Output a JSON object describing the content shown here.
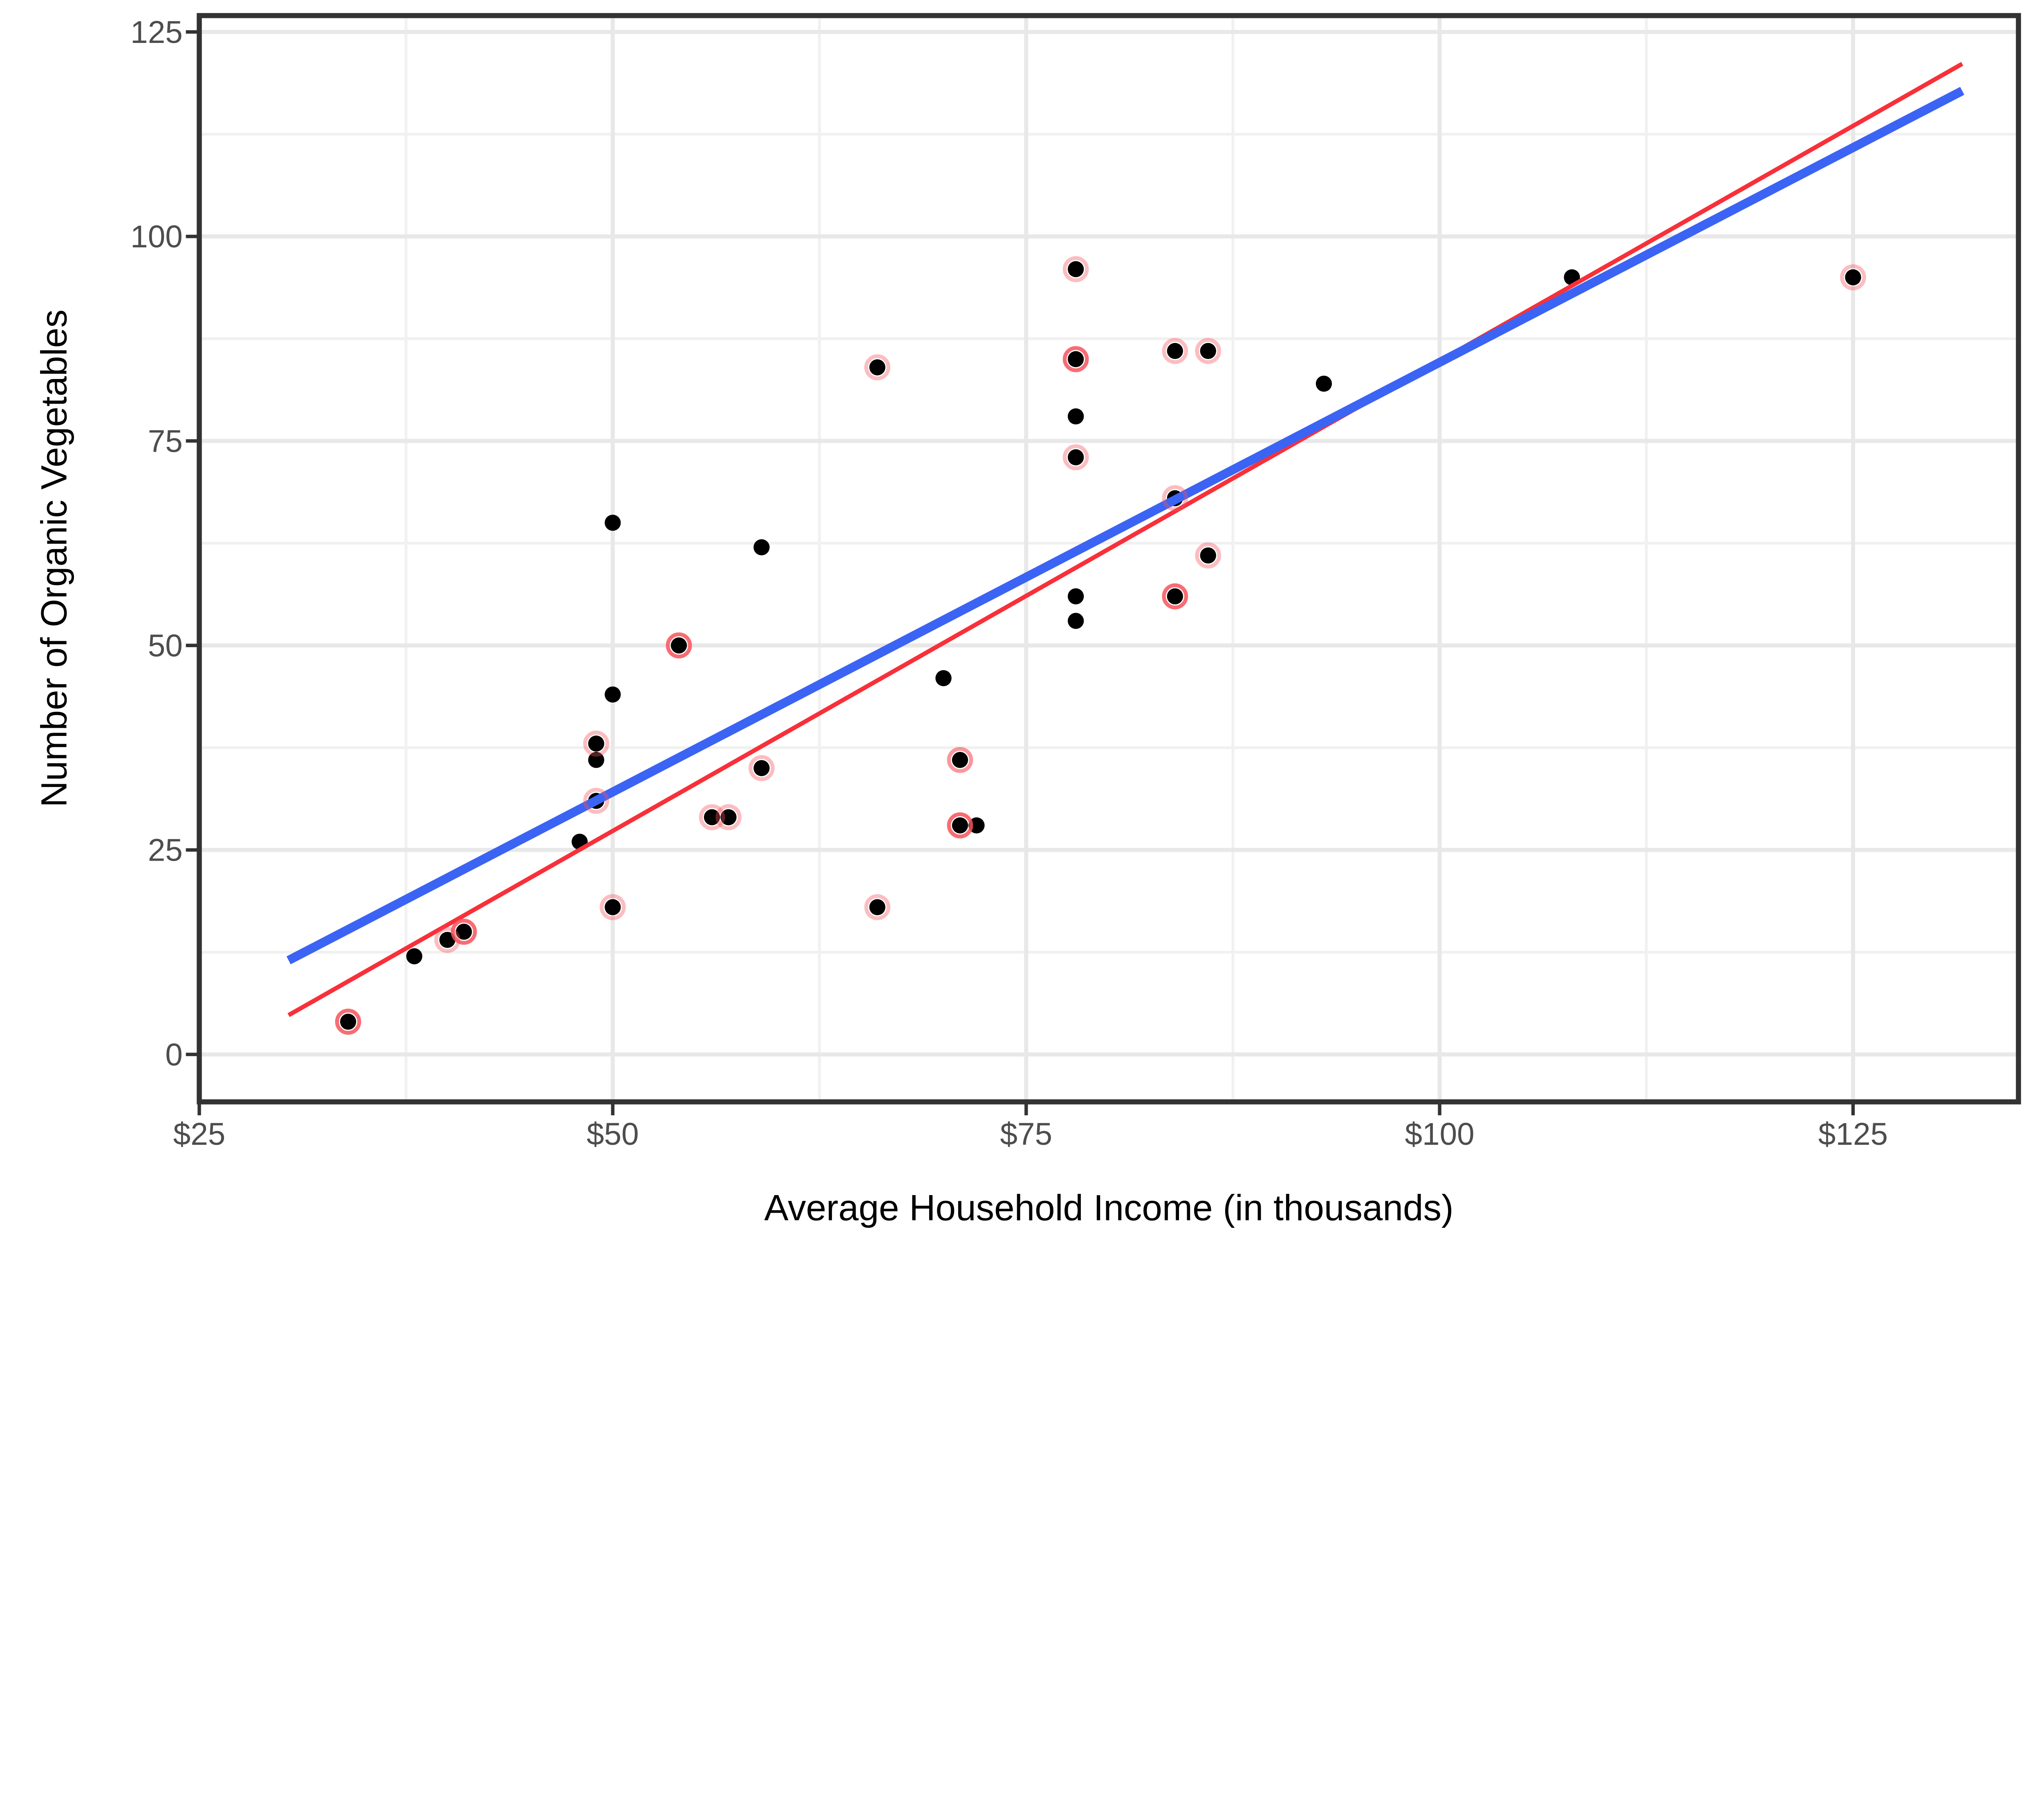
{
  "chart_data": {
    "type": "scatter",
    "title": "",
    "xlabel": "Average Household Income (in thousands)",
    "ylabel": "Number of Organic Vegetables",
    "xlim": [
      25,
      135
    ],
    "ylim": [
      -5.8,
      127
    ],
    "grid": "major and minor gridlines on white panel with dark border",
    "legend_position": "none",
    "x_ticks": [
      {
        "v": 25,
        "label": "$25"
      },
      {
        "v": 50,
        "label": "$50"
      },
      {
        "v": 75,
        "label": "$75"
      },
      {
        "v": 100,
        "label": "$100"
      },
      {
        "v": 125,
        "label": "$125"
      }
    ],
    "y_ticks": [
      {
        "v": 0,
        "label": "0"
      },
      {
        "v": 25,
        "label": "25"
      },
      {
        "v": 50,
        "label": "50"
      },
      {
        "v": 75,
        "label": "75"
      },
      {
        "v": 100,
        "label": "100"
      },
      {
        "v": 125,
        "label": "125"
      }
    ],
    "x_minor_gridlines": [
      37.5,
      62.5,
      87.5,
      112.5
    ],
    "y_minor_gridlines": [
      12.5,
      37.5,
      62.5,
      87.5,
      112.5
    ],
    "points": [
      {
        "x": 34,
        "y": 4,
        "ring": "strong"
      },
      {
        "x": 38,
        "y": 12,
        "ring": "none"
      },
      {
        "x": 40,
        "y": 14,
        "ring": "light"
      },
      {
        "x": 41,
        "y": 15,
        "ring": "strong"
      },
      {
        "x": 48,
        "y": 26,
        "ring": "none"
      },
      {
        "x": 49,
        "y": 31,
        "ring": "light"
      },
      {
        "x": 49,
        "y": 36,
        "ring": "none"
      },
      {
        "x": 49,
        "y": 38,
        "ring": "light"
      },
      {
        "x": 50,
        "y": 18,
        "ring": "light"
      },
      {
        "x": 50,
        "y": 44,
        "ring": "none"
      },
      {
        "x": 50,
        "y": 65,
        "ring": "none"
      },
      {
        "x": 54,
        "y": 50,
        "ring": "strong"
      },
      {
        "x": 56,
        "y": 29,
        "ring": "light"
      },
      {
        "x": 57,
        "y": 29,
        "ring": "light"
      },
      {
        "x": 59,
        "y": 35,
        "ring": "light"
      },
      {
        "x": 59,
        "y": 62,
        "ring": "none"
      },
      {
        "x": 66,
        "y": 18,
        "ring": "light"
      },
      {
        "x": 66,
        "y": 84,
        "ring": "light"
      },
      {
        "x": 70,
        "y": 46,
        "ring": "none"
      },
      {
        "x": 71,
        "y": 36,
        "ring": "medium"
      },
      {
        "x": 71,
        "y": 28,
        "ring": "strong"
      },
      {
        "x": 72,
        "y": 28,
        "ring": "none"
      },
      {
        "x": 78,
        "y": 53,
        "ring": "none"
      },
      {
        "x": 78,
        "y": 56,
        "ring": "none"
      },
      {
        "x": 78,
        "y": 73,
        "ring": "light"
      },
      {
        "x": 78,
        "y": 78,
        "ring": "none"
      },
      {
        "x": 78,
        "y": 85,
        "ring": "strong"
      },
      {
        "x": 78,
        "y": 96,
        "ring": "light"
      },
      {
        "x": 84,
        "y": 56,
        "ring": "strong"
      },
      {
        "x": 84,
        "y": 68,
        "ring": "light"
      },
      {
        "x": 84,
        "y": 86,
        "ring": "light"
      },
      {
        "x": 86,
        "y": 61,
        "ring": "light"
      },
      {
        "x": 86,
        "y": 86,
        "ring": "light"
      },
      {
        "x": 93,
        "y": 82,
        "ring": "none"
      },
      {
        "x": 108,
        "y": 95,
        "ring": "none"
      },
      {
        "x": 125,
        "y": 95,
        "ring": "light"
      }
    ],
    "lines": [
      {
        "name": "red-regression-line",
        "color": "#F8303A",
        "width": 3.4,
        "x1": 30.4,
        "y1": 4.8,
        "x2": 131.6,
        "y2": 121.1
      },
      {
        "name": "blue-regression-line",
        "color": "#3B64F4",
        "width": 7.0,
        "x1": 30.4,
        "y1": 11.5,
        "x2": 131.6,
        "y2": 117.8
      }
    ],
    "style": {
      "point_color": "#000000",
      "point_radius": 6.3,
      "ring_color": "#F8525A",
      "ring_radius": 8.7,
      "ring_stroke_width": 3.0,
      "ring_alpha": {
        "light": 0.38,
        "medium": 0.6,
        "strong": 0.85
      },
      "major_gridline_color": "#E8E8E8",
      "minor_gridline_color": "#F1F1F1",
      "panel_border_color": "#333333",
      "tick_color": "#333333",
      "tick_label_color": "#4D4D4D",
      "axis_title_color": "#000000"
    }
  }
}
